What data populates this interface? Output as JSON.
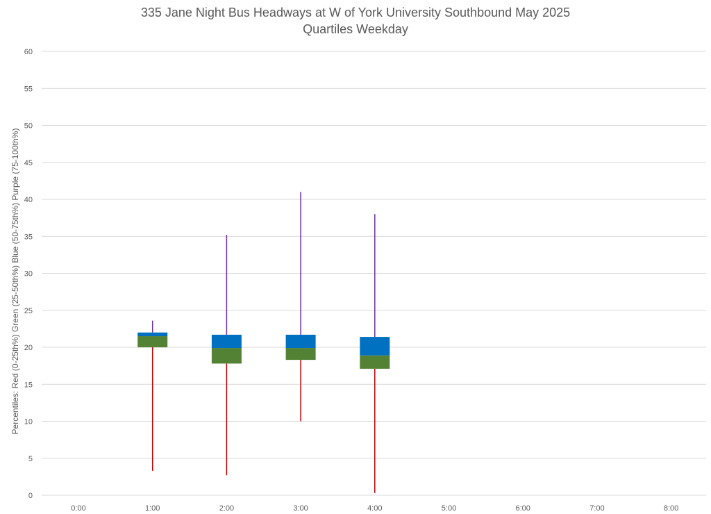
{
  "chart_data": {
    "type": "box",
    "title": "335 Jane Night Bus Headways at W of York University Southbound May 2025",
    "subtitle": "Quartiles Weekday",
    "xlabel": "",
    "ylabel": "Percentiles:  Red (0-25th%)  Green (25-50th%)  Blue (50-75th%)  Purple (75-100th%)",
    "ylim": [
      0,
      60
    ],
    "yticks": [
      0,
      5,
      10,
      15,
      20,
      25,
      30,
      35,
      40,
      45,
      50,
      55,
      60
    ],
    "categories": [
      "0:00",
      "1:00",
      "2:00",
      "3:00",
      "4:00",
      "5:00",
      "6:00",
      "7:00",
      "8:00"
    ],
    "grid": true,
    "boxes": [
      {
        "category": "1:00",
        "min": 3.3,
        "q1": 20.0,
        "median": 21.5,
        "q3": 22.0,
        "max": 23.6
      },
      {
        "category": "2:00",
        "min": 2.7,
        "q1": 17.8,
        "median": 19.9,
        "q3": 21.7,
        "max": 35.2
      },
      {
        "category": "3:00",
        "min": 10.0,
        "q1": 18.3,
        "median": 19.9,
        "q3": 21.7,
        "max": 41.0
      },
      {
        "category": "4:00",
        "min": 0.3,
        "q1": 17.1,
        "median": 18.9,
        "q3": 21.4,
        "max": 38.0
      }
    ],
    "colors": {
      "lower_whisker": "#c00000",
      "lower_box": "#548235",
      "upper_box": "#0070c0",
      "upper_whisker": "#7030a0",
      "grid": "#d9d9d9",
      "text": "#595959"
    }
  }
}
